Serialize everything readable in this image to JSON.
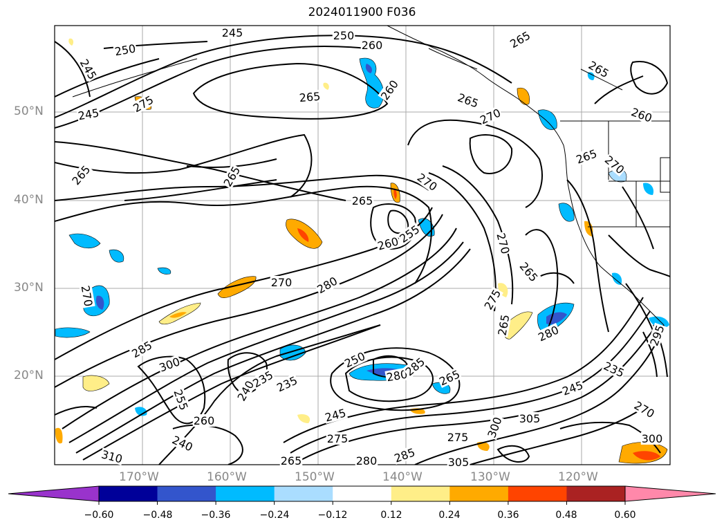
{
  "title": "2024011900 F036",
  "map": {
    "lat_labels": [
      "50°N",
      "40°N",
      "30°N",
      "20°N"
    ],
    "lon_labels": [
      "170°W",
      "160°W",
      "150°W",
      "140°W",
      "130°W",
      "120°W"
    ],
    "contour_labels": [
      "245",
      "250",
      "250",
      "245",
      "245",
      "260",
      "265",
      "260",
      "265",
      "265",
      "265",
      "260",
      "275",
      "270",
      "265",
      "265",
      "265",
      "270",
      "270",
      "265",
      "260",
      "255",
      "270",
      "265",
      "270",
      "280",
      "275",
      "265",
      "280",
      "270",
      "285",
      "300",
      "250",
      "280",
      "285",
      "265",
      "235",
      "255",
      "260",
      "240",
      "235",
      "245",
      "275",
      "240",
      "265",
      "280",
      "285",
      "305",
      "275",
      "300",
      "305",
      "270",
      "300",
      "295",
      "310",
      "235",
      "245"
    ]
  },
  "colorbar": {
    "ticks": [
      "−0.60",
      "−0.48",
      "−0.36",
      "−0.24",
      "−0.12",
      "0.12",
      "0.24",
      "0.36",
      "0.48",
      "0.60"
    ],
    "colors": [
      "#9933cc",
      "#000099",
      "#3355cc",
      "#00bbff",
      "#aaddff",
      "#ffffff",
      "#ffee88",
      "#ffaa00",
      "#ff4400",
      "#aa2222",
      "#ff88aa"
    ]
  }
}
